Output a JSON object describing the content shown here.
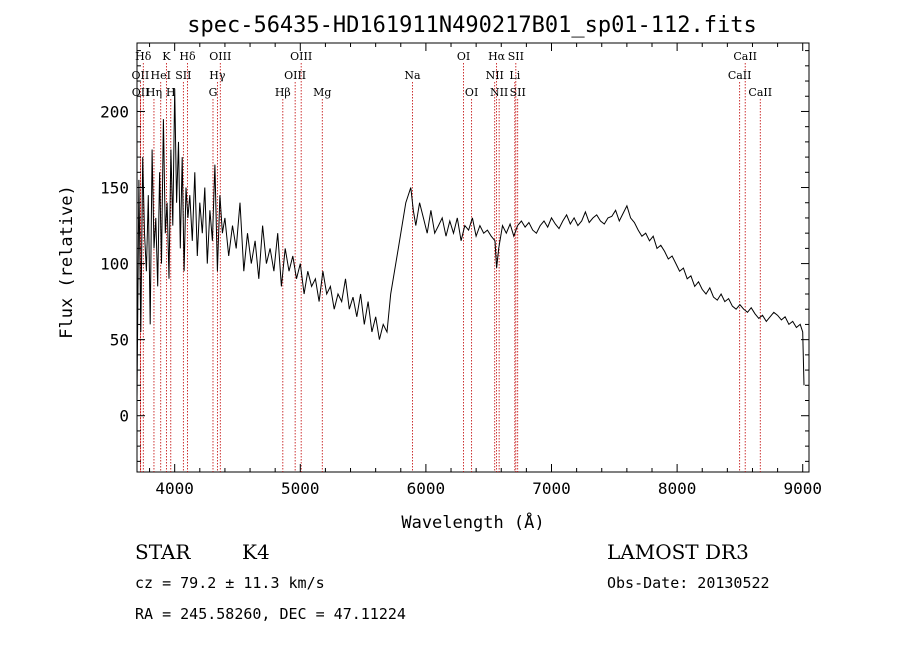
{
  "chart_data": {
    "type": "line",
    "title": "spec-56435-HD161911N490217B01_sp01-112.fits",
    "xlabel": "Wavelength (Å)",
    "ylabel": "Flux (relative)",
    "xlim": [
      3700,
      9050
    ],
    "ylim": [
      -37,
      245
    ],
    "x_ticks": [
      4000,
      5000,
      6000,
      7000,
      8000,
      9000
    ],
    "y_ticks": [
      0,
      50,
      100,
      150,
      200
    ],
    "grid": false,
    "series": [
      {
        "color": "#000000",
        "x": [
          3700,
          3715,
          3730,
          3745,
          3760,
          3775,
          3790,
          3805,
          3820,
          3835,
          3850,
          3865,
          3880,
          3895,
          3910,
          3925,
          3940,
          3955,
          3970,
          3985,
          4000,
          4015,
          4030,
          4045,
          4060,
          4075,
          4090,
          4105,
          4120,
          4140,
          4160,
          4180,
          4200,
          4220,
          4240,
          4260,
          4280,
          4300,
          4320,
          4340,
          4360,
          4380,
          4400,
          4430,
          4460,
          4490,
          4520,
          4550,
          4580,
          4610,
          4640,
          4670,
          4700,
          4730,
          4760,
          4790,
          4820,
          4850,
          4880,
          4910,
          4940,
          4970,
          5000,
          5030,
          5060,
          5090,
          5120,
          5150,
          5180,
          5210,
          5240,
          5270,
          5300,
          5330,
          5360,
          5390,
          5420,
          5450,
          5480,
          5510,
          5540,
          5570,
          5600,
          5630,
          5660,
          5690,
          5720,
          5750,
          5780,
          5800,
          5820,
          5840,
          5860,
          5880,
          5900,
          5920,
          5950,
          5980,
          6010,
          6040,
          6070,
          6100,
          6130,
          6160,
          6190,
          6220,
          6250,
          6280,
          6310,
          6340,
          6370,
          6400,
          6430,
          6460,
          6490,
          6520,
          6550,
          6563,
          6580,
          6610,
          6640,
          6670,
          6700,
          6730,
          6760,
          6790,
          6820,
          6850,
          6880,
          6910,
          6940,
          6970,
          7000,
          7030,
          7060,
          7090,
          7120,
          7150,
          7180,
          7210,
          7240,
          7270,
          7300,
          7330,
          7360,
          7390,
          7420,
          7450,
          7480,
          7510,
          7540,
          7570,
          7600,
          7630,
          7660,
          7690,
          7720,
          7750,
          7780,
          7810,
          7840,
          7870,
          7900,
          7930,
          7960,
          7990,
          8020,
          8050,
          8080,
          8110,
          8140,
          8170,
          8200,
          8230,
          8260,
          8290,
          8320,
          8350,
          8380,
          8410,
          8440,
          8470,
          8500,
          8530,
          8560,
          8590,
          8620,
          8650,
          8680,
          8710,
          8740,
          8770,
          8800,
          8830,
          8860,
          8890,
          8920,
          8950,
          8980,
          9000,
          9010
        ],
        "y": [
          10,
          155,
          55,
          170,
          120,
          95,
          145,
          60,
          175,
          110,
          130,
          85,
          160,
          100,
          195,
          120,
          140,
          90,
          175,
          125,
          215,
          140,
          180,
          110,
          170,
          95,
          150,
          130,
          145,
          115,
          160,
          105,
          140,
          120,
          150,
          100,
          135,
          115,
          165,
          95,
          145,
          120,
          130,
          105,
          125,
          110,
          140,
          95,
          120,
          100,
          115,
          90,
          125,
          100,
          110,
          95,
          120,
          85,
          110,
          95,
          105,
          90,
          100,
          80,
          95,
          85,
          90,
          75,
          95,
          80,
          85,
          70,
          80,
          75,
          90,
          70,
          78,
          65,
          80,
          60,
          75,
          55,
          65,
          50,
          60,
          55,
          80,
          95,
          110,
          120,
          130,
          140,
          145,
          150,
          135,
          125,
          140,
          130,
          120,
          135,
          120,
          125,
          130,
          118,
          128,
          120,
          130,
          115,
          125,
          122,
          130,
          118,
          125,
          120,
          122,
          118,
          115,
          97,
          110,
          125,
          120,
          126,
          118,
          125,
          128,
          124,
          127,
          122,
          120,
          125,
          128,
          124,
          130,
          126,
          123,
          128,
          132,
          126,
          130,
          125,
          128,
          134,
          127,
          130,
          132,
          128,
          126,
          130,
          131,
          135,
          128,
          133,
          138,
          130,
          127,
          122,
          118,
          120,
          115,
          118,
          110,
          112,
          108,
          103,
          105,
          100,
          95,
          97,
          90,
          92,
          85,
          88,
          83,
          80,
          84,
          78,
          76,
          80,
          75,
          77,
          72,
          70,
          73,
          70,
          68,
          71,
          67,
          64,
          66,
          62,
          65,
          68,
          66,
          63,
          65,
          60,
          62,
          58,
          60,
          55,
          20
        ]
      }
    ],
    "line_markers": [
      {
        "label": "Hδ",
        "x": 3750,
        "row": 0
      },
      {
        "label": "OII",
        "x": 3727,
        "row": 1
      },
      {
        "label": "OII",
        "x": 3729,
        "row": 2
      },
      {
        "label": "K",
        "x": 3934,
        "row": 0
      },
      {
        "label": "HeI",
        "x": 3889,
        "row": 1
      },
      {
        "label": "Hη",
        "x": 3835,
        "row": 2
      },
      {
        "label": "SII",
        "x": 4069,
        "row": 1
      },
      {
        "label": "H",
        "x": 3969,
        "row": 2
      },
      {
        "label": "Hδ",
        "x": 4102,
        "row": 0
      },
      {
        "label": "OIII",
        "x": 4363,
        "row": 0
      },
      {
        "label": "Hγ",
        "x": 4340,
        "row": 1
      },
      {
        "label": "G",
        "x": 4305,
        "row": 2
      },
      {
        "label": "OIII",
        "x": 5007,
        "row": 0
      },
      {
        "label": "OIII",
        "x": 4959,
        "row": 1
      },
      {
        "label": "Hβ",
        "x": 4861,
        "row": 2
      },
      {
        "label": "Mg",
        "x": 5175,
        "row": 2
      },
      {
        "label": "Na",
        "x": 5893,
        "row": 1
      },
      {
        "label": "OI",
        "x": 6300,
        "row": 0
      },
      {
        "label": "OI",
        "x": 6364,
        "row": 2
      },
      {
        "label": "Hα",
        "x": 6563,
        "row": 0
      },
      {
        "label": "SII",
        "x": 6716,
        "row": 0
      },
      {
        "label": "NII",
        "x": 6548,
        "row": 1
      },
      {
        "label": "Li",
        "x": 6708,
        "row": 1
      },
      {
        "label": "NII",
        "x": 6583,
        "row": 2
      },
      {
        "label": "SII",
        "x": 6731,
        "row": 2
      },
      {
        "label": "CaII",
        "x": 8542,
        "row": 0
      },
      {
        "label": "CaII",
        "x": 8498,
        "row": 1
      },
      {
        "label": "CaII",
        "x": 8662,
        "row": 2
      }
    ]
  },
  "info": {
    "object_class": "STAR",
    "subclass": "K4",
    "release": "LAMOST DR3",
    "cz": "cz = 79.2 ± 11.3 km/s",
    "obs_date": "Obs-Date: 20130522",
    "coords": "RA = 245.58260, DEC =  47.11224"
  }
}
